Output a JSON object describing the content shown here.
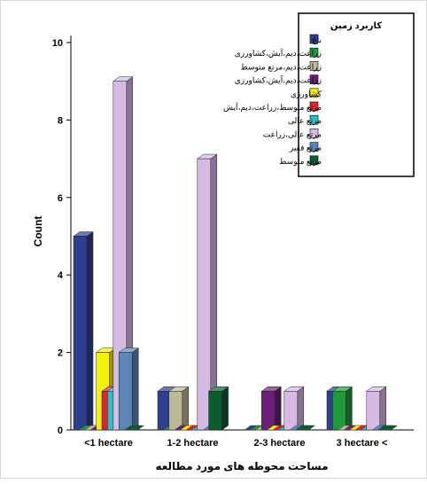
{
  "chart_data": {
    "type": "bar",
    "title": "",
    "xlabel": "مساحت محوطه های مورد مطالعه",
    "ylabel": "Count",
    "categories": [
      "<1 hectare",
      "1-2 hectare",
      "2-3 hectare",
      "3 hectare <"
    ],
    "ylim": [
      0,
      10
    ],
    "yticks": [
      "0",
      "2",
      "4",
      "6",
      "8",
      "10"
    ],
    "grid": false,
    "legend_position": "top-right",
    "legend_title": "کاربرد زمین",
    "series": [
      {
        "name": "باغ",
        "color": "#2f3f8f",
        "values": [
          5,
          1,
          0,
          1
        ]
      },
      {
        "name": "زراعت،دیم،آیش،کشاورزی",
        "color": "#1e9a3c",
        "values": [
          0,
          0,
          0,
          1
        ]
      },
      {
        "name": "زراعت،دیم،مرتع متوسط",
        "color": "#bdb996",
        "values": [
          0,
          1,
          0,
          0
        ]
      },
      {
        "name": "زراعت،دیم،آیش،کشاورزی",
        "color": "#6b2077",
        "values": [
          0,
          0,
          1,
          0
        ]
      },
      {
        "name": "کشاورزی",
        "color": "#f5f10a",
        "values": [
          2,
          0,
          0,
          0
        ]
      },
      {
        "name": "مرتع متوسط،زراعت،دیم،آیش",
        "color": "#e0232e",
        "values": [
          1,
          0,
          0,
          0
        ]
      },
      {
        "name": "مرتع عالی",
        "color": "#2cc1c7",
        "values": [
          1,
          0,
          0,
          0
        ]
      },
      {
        "name": "مرتع عالی،زراعت",
        "color": "#d7b9e6",
        "values": [
          9,
          7,
          1,
          1
        ]
      },
      {
        "name": "مرتع فقیر",
        "color": "#5d86b8",
        "values": [
          2,
          0,
          0,
          0
        ]
      },
      {
        "name": "مرتع متوسط",
        "color": "#0f5b30",
        "values": [
          0,
          1,
          0,
          0
        ]
      }
    ]
  }
}
